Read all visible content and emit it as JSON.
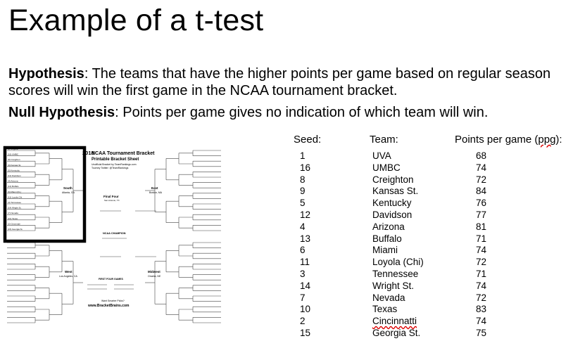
{
  "slide": {
    "title": "Example of a t-test",
    "hypothesis_label": "Hypothesis",
    "hypothesis_text": ": The teams that have the higher points per game based on regular season scores will win the first game in the NCAA tournament bracket.",
    "null_label": "Null Hypothesis",
    "null_text": ": Points per game gives no indication of which team will win."
  },
  "table": {
    "headers": {
      "seed": "Seed:",
      "team": "Team:",
      "ppg_prefix": "Points per game (",
      "ppg_abbr": "ppg",
      "ppg_suffix": "):"
    },
    "rows": [
      {
        "seed": "1",
        "team": "UVA",
        "ppg": "68"
      },
      {
        "seed": "16",
        "team": "UMBC",
        "ppg": "74"
      },
      {
        "seed": "8",
        "team": "Creighton",
        "ppg": "72"
      },
      {
        "seed": "9",
        "team": "Kansas St.",
        "ppg": "84"
      },
      {
        "seed": "5",
        "team": "Kentucky",
        "ppg": "76"
      },
      {
        "seed": "12",
        "team": "Davidson",
        "ppg": "77"
      },
      {
        "seed": "4",
        "team": "Arizona",
        "ppg": "81"
      },
      {
        "seed": "13",
        "team": "Buffalo",
        "ppg": "71"
      },
      {
        "seed": "6",
        "team": "Miami",
        "ppg": "74"
      },
      {
        "seed": "11",
        "team": "Loyola (Chi)",
        "ppg": "72"
      },
      {
        "seed": "3",
        "team": "Tennessee",
        "ppg": "71"
      },
      {
        "seed": "14",
        "team": "Wright St.",
        "ppg": "74"
      },
      {
        "seed": "7",
        "team": "Nevada",
        "ppg": "72"
      },
      {
        "seed": "10",
        "team": "Texas",
        "ppg": "83"
      },
      {
        "seed": "2",
        "team": "Cincinnatti",
        "ppg": "74"
      },
      {
        "seed": "15",
        "team": "Georgia St.",
        "ppg": "75"
      }
    ]
  },
  "bracket": {
    "heading_year": "2018",
    "heading_line1": "NCAA Tournament Bracket",
    "heading_line2": "Printable Bracket Sheet",
    "credit1": "Unofficial Bracket by TeamRankings.com",
    "credit2": "Tourney Twitter: @TeamRankings",
    "region_south": "South",
    "region_south_city": "Atlanta, GA",
    "region_east": "East",
    "region_east_city": "Boston, MA",
    "region_west": "West",
    "region_west_city": "Los Angeles, CA",
    "region_midwest": "Midwest",
    "region_midwest_city": "Omaha, NE",
    "final_four": "Final Four",
    "final_four_city": "San Antonio, TX",
    "champion": "NCAA CHAMPION",
    "first_four": "FIRST FOUR GAMES",
    "promo": "Want Smarter Picks?",
    "site": "www.BracketBrains.com",
    "south_teams": [
      "(1) Virginia",
      "(16) UMBC",
      "(8) Creighton",
      "(9) Kansas St.",
      "(5) Kentucky",
      "(12) Davidson",
      "(4) Arizona",
      "(13) Buffalo",
      "(6) Miami (FL)",
      "(11) Loyola Chi",
      "(3) Tennessee",
      "(14) Wright St.",
      "(7) Nevada",
      "(10) Texas",
      "(2) Cincinnati",
      "(15) Georgia St."
    ],
    "highlight_color": "#000000"
  }
}
